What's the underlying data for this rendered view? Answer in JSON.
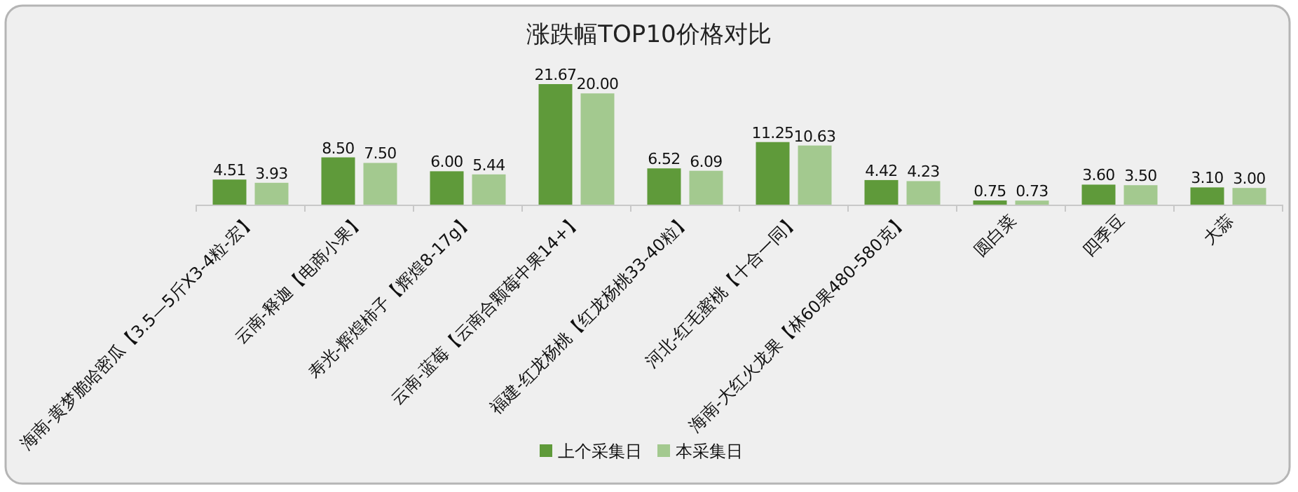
{
  "chart_data": {
    "type": "bar",
    "title": "涨跌幅TOP10价格对比",
    "categories": [
      "海南-黄梦脆哈密瓜【3.5—5斤X3-4粒-宏】",
      "云南-释迦【电商小果】",
      "寿光-辉煌柿子【辉煌8-17g】",
      "云南-蓝莓【云南合颗莓中果14+】",
      "福建-红龙杨桃【红龙杨桃33-40粒】",
      "河北-红毛蜜桃【十合一同】",
      "海南-大红火龙果【林60果480-580克】",
      "圆白菜",
      "四季豆",
      "大蒜"
    ],
    "series": [
      {
        "name": "上个采集日",
        "color": "#5f9a3a",
        "values": [
          4.51,
          8.5,
          6.0,
          21.67,
          6.52,
          11.25,
          4.42,
          0.75,
          3.6,
          3.1
        ],
        "value_labels": [
          "4.51",
          "8.50",
          "6.00",
          "21.67",
          "6.52",
          "11.25",
          "4.42",
          "0.75",
          "3.60",
          "3.10"
        ]
      },
      {
        "name": "本采集日",
        "color": "#a3c98f",
        "values": [
          3.93,
          7.5,
          5.44,
          20.0,
          6.09,
          10.63,
          4.23,
          0.73,
          3.5,
          3.0
        ],
        "value_labels": [
          "3.93",
          "7.50",
          "5.44",
          "20.00",
          "6.09",
          "10.63",
          "4.23",
          "0.73",
          "3.50",
          "3.00"
        ]
      }
    ],
    "legend": "bottom"
  }
}
